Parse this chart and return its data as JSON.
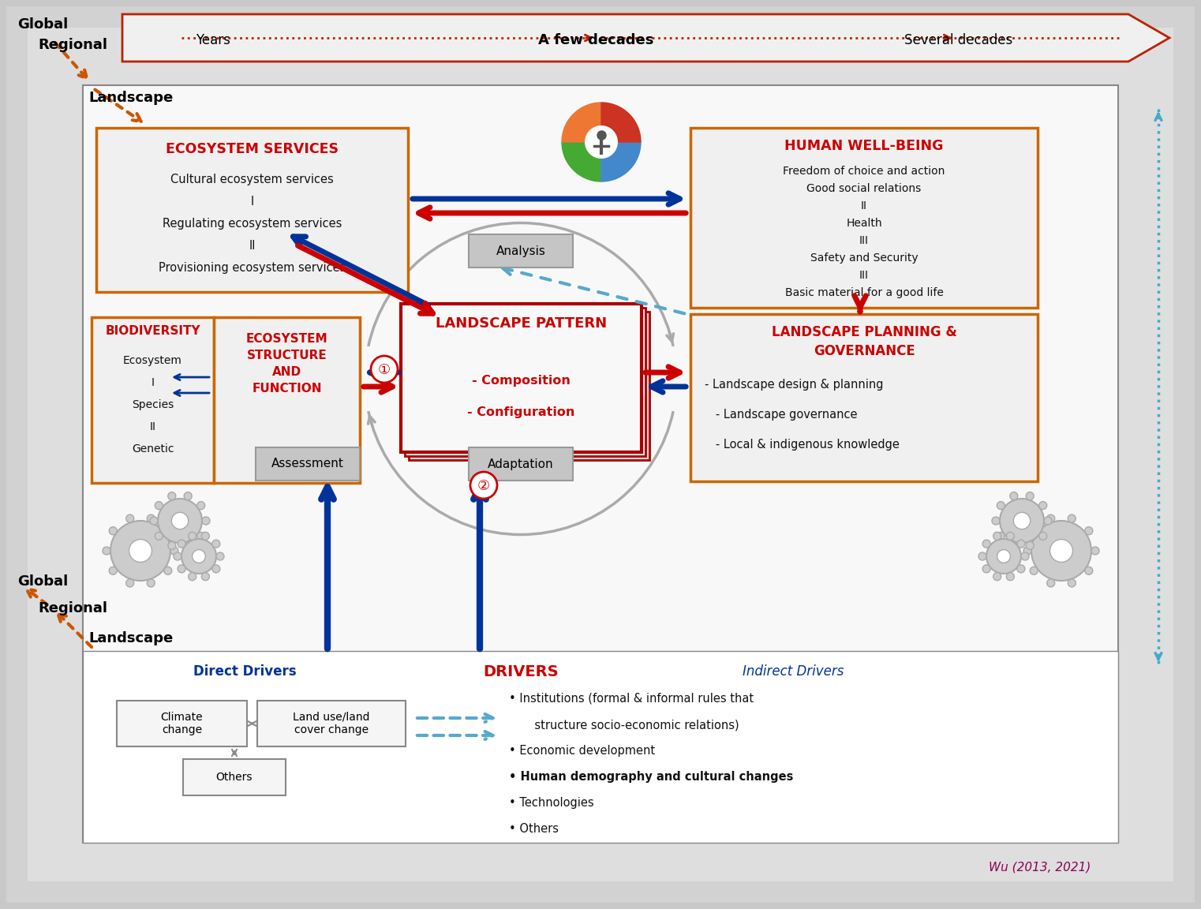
{
  "bg_outer_color": "#c8c8c8",
  "bg_mid_color": "#d8d8d8",
  "bg_inner_color": "#e8e8e8",
  "bg_white": "#f8f8f8",
  "orange_border": "#cc6600",
  "red_title": "#cc0000",
  "blue_dark": "#003399",
  "blue_light": "#55aacc",
  "gray_box": "#c0c0c0",
  "time_years": "Years",
  "time_few": "A few decades",
  "time_several": "Several decades",
  "eco_services_title": "ECOSYSTEM SERVICES",
  "eco_services_lines": [
    "Cultural ecosystem services",
    "I",
    "Regulating ecosystem services",
    "II",
    "Provisioning ecosystem services"
  ],
  "human_wb_title": "HUMAN WELL-BEING",
  "human_wb_lines": [
    "Freedom of choice and action",
    "Good social relations",
    "II",
    "Health",
    "III",
    "Safety and Security",
    "III",
    "Basic material for a good life"
  ],
  "biodiversity_title": "BIODIVERSITY",
  "biodiversity_lines": [
    "Ecosystem",
    "I",
    "Species",
    "II",
    "Genetic"
  ],
  "ecosys_struct_title": "ECOSYSTEM\nSTRUCTURE\nAND\nFUNCTION",
  "landscape_pattern_title": "LANDSCAPE PATTERN",
  "landscape_pattern_lines": [
    "- Composition",
    "- Configuration"
  ],
  "landscape_planning_title": "LANDSCAPE PLANNING &\nGOVERNANCE",
  "landscape_planning_lines": [
    "- Landscape design & planning",
    "   - Landscape governance",
    "   - Local & indigenous knowledge"
  ],
  "analysis_label": "Analysis",
  "assessment_label": "Assessment",
  "adaptation_label": "Adaptation",
  "drivers_title": "DRIVERS",
  "direct_drivers_label": "Direct Drivers",
  "indirect_drivers_label": "Indirect Drivers",
  "direct_box1": "Climate\nchange",
  "direct_box2": "Land use/land\ncover change",
  "direct_box3": "Others",
  "indirect_lines": [
    "Institutions (formal & informal rules that",
    "    structure socio-economic relations)",
    "Economic development",
    "Human demography and cultural changes",
    "Technologies",
    "Others"
  ],
  "indirect_bold": [
    false,
    false,
    false,
    true,
    false,
    false
  ],
  "citation": "Wu (2013, 2021)",
  "icon_colors": [
    "#44aa33",
    "#4488cc",
    "#ee7733",
    "#cc3322"
  ]
}
